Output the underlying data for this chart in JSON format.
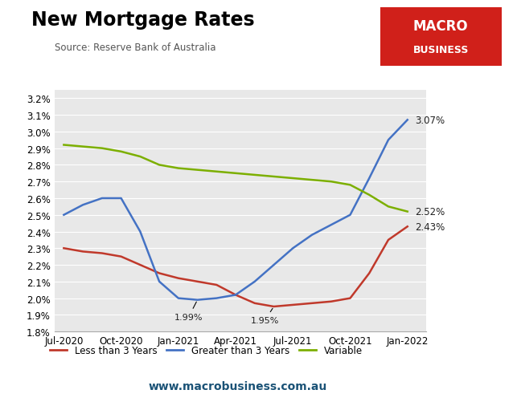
{
  "title": "New Mortgage Rates",
  "source": "Source: Reserve Bank of Australia",
  "website": "www.macrobusiness.com.au",
  "x_labels": [
    "Jul-2020",
    "Oct-2020",
    "Jan-2021",
    "Apr-2021",
    "Jul-2021",
    "Oct-2021",
    "Jan-2022"
  ],
  "x_indices": [
    0,
    3,
    6,
    9,
    12,
    15,
    18
  ],
  "less_than_3yr": {
    "label": "Less than 3 Years",
    "color": "#c0392b",
    "x": [
      0,
      1,
      2,
      3,
      4,
      5,
      6,
      7,
      8,
      9,
      10,
      11,
      12,
      13,
      14,
      15,
      16,
      17,
      18
    ],
    "y": [
      2.3,
      2.28,
      2.27,
      2.25,
      2.2,
      2.15,
      2.12,
      2.1,
      2.08,
      2.02,
      1.97,
      1.95,
      1.96,
      1.97,
      1.98,
      2.0,
      2.15,
      2.35,
      2.43
    ]
  },
  "greater_than_3yr": {
    "label": "Greater than 3 Years",
    "color": "#4472c4",
    "x": [
      0,
      1,
      2,
      3,
      4,
      5,
      6,
      7,
      8,
      9,
      10,
      11,
      12,
      13,
      14,
      15,
      16,
      17,
      18
    ],
    "y": [
      2.5,
      2.56,
      2.6,
      2.6,
      2.4,
      2.1,
      2.0,
      1.99,
      2.0,
      2.02,
      2.1,
      2.2,
      2.3,
      2.38,
      2.44,
      2.5,
      2.72,
      2.95,
      3.07
    ]
  },
  "variable": {
    "label": "Variable",
    "color": "#7caf00",
    "x": [
      0,
      1,
      2,
      3,
      4,
      5,
      6,
      7,
      8,
      9,
      10,
      11,
      12,
      13,
      14,
      15,
      16,
      17,
      18
    ],
    "y": [
      2.92,
      2.91,
      2.9,
      2.88,
      2.85,
      2.8,
      2.78,
      2.77,
      2.76,
      2.75,
      2.74,
      2.73,
      2.72,
      2.71,
      2.7,
      2.68,
      2.62,
      2.55,
      2.52
    ]
  },
  "ylim": [
    1.8,
    3.25
  ],
  "yticks": [
    1.8,
    1.9,
    2.0,
    2.1,
    2.2,
    2.3,
    2.4,
    2.5,
    2.6,
    2.7,
    2.8,
    2.9,
    3.0,
    3.1,
    3.2
  ],
  "background_color": "#e8e8e8",
  "fig_background": "#ffffff",
  "macro_box_color": "#d0201a",
  "line_width": 1.8,
  "label_color": "#222222",
  "website_color": "#1a5276",
  "annotation_color": "#222222"
}
